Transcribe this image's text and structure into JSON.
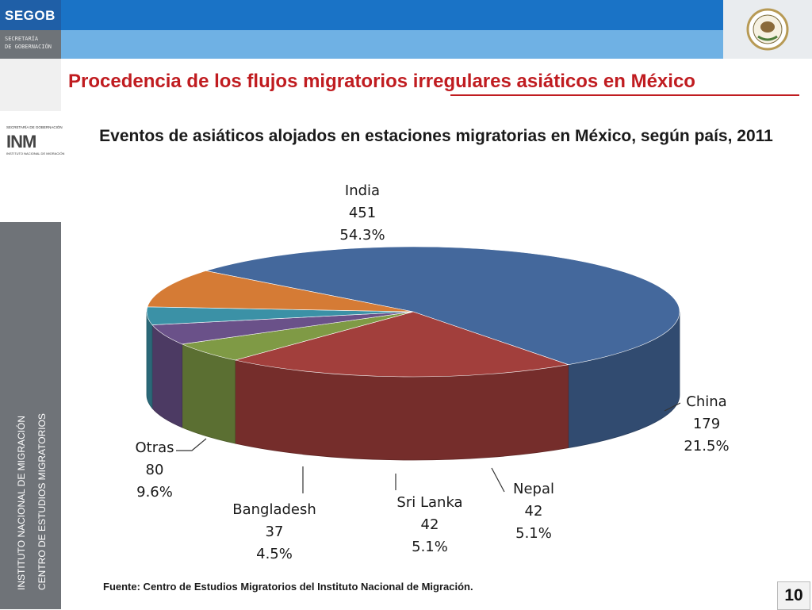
{
  "header": {
    "brand": "SEGOB",
    "subtitle_1": "SECRETARÍA",
    "subtitle_2": "DE GOBERNACIÓN",
    "seal_text": "ESTADOS UNIDOS MEXICANOS"
  },
  "sidebar": {
    "logo_caption_top": "SECRETARÍA DE GOBERNACIÓN",
    "logo": "INM",
    "logo_caption_bottom": "INSTITUTO NACIONAL DE MIGRACIÓN",
    "vertical_1": "INSTITUTO NACIONAL DE MIGRACIÓN",
    "vertical_2": "CENTRO DE ESTUDIOS MIGRATORIOS"
  },
  "slide": {
    "title": "Procedencia de los flujos migratorios irregulares asiáticos en México",
    "source": "Fuente: Centro de Estudios Migratorios del Instituto Nacional de Migración.",
    "page_number": "10"
  },
  "chart_data": {
    "type": "pie",
    "title": "Eventos de asiáticos alojados en estaciones migratorias en México, según país, 2011",
    "slices": [
      {
        "label": "India",
        "value": 451,
        "value_text": "451",
        "percent": "54.3%",
        "color": "#44689c"
      },
      {
        "label": "China",
        "value": 179,
        "value_text": "179",
        "percent": "21.5%",
        "color": "#a23f3c"
      },
      {
        "label": "Nepal",
        "value": 42,
        "value_text": "42",
        "percent": "5.1%",
        "color": "#7f9a45"
      },
      {
        "label": "Sri Lanka",
        "value": 42,
        "value_text": "42",
        "percent": "5.1%",
        "color": "#6a5189"
      },
      {
        "label": "Bangladesh",
        "value": 37,
        "value_text": "37",
        "percent": "4.5%",
        "color": "#3b91a6"
      },
      {
        "label": "Otras",
        "value": 80,
        "value_text": "80",
        "percent": "9.6%",
        "color": "#d57b35"
      }
    ]
  }
}
